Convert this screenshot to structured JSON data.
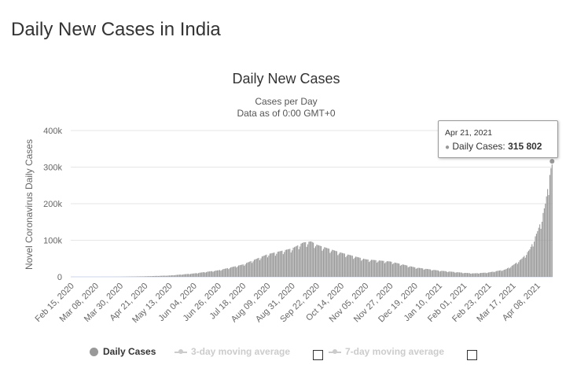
{
  "page": {
    "heading": "Daily New Cases in India"
  },
  "chart_data": {
    "type": "bar",
    "title": "Daily New Cases",
    "subtitle_lines": [
      "Cases per Day",
      "Data as of 0:00 GMT+0"
    ],
    "ylabel": "Novel Coronavirus Daily Cases",
    "xlabel": "",
    "ylim": [
      0,
      400000
    ],
    "y_tick_labels": [
      "0",
      "100k",
      "200k",
      "300k",
      "400k"
    ],
    "x_start_date": "2020-02-15",
    "x_end_date": "2021-04-21",
    "x_tick_labels": [
      "Feb 15, 2020",
      "Mar 08, 2020",
      "Mar 30, 2020",
      "Apr 21, 2020",
      "May 13, 2020",
      "Jun 04, 2020",
      "Jun 26, 2020",
      "Jul 18, 2020",
      "Aug 09, 2020",
      "Aug 31, 2020",
      "Sep 22, 2020",
      "Oct 14, 2020",
      "Nov 05, 2020",
      "Nov 27, 2020",
      "Dec 19, 2020",
      "Jan 10, 2021",
      "Feb 01, 2021",
      "Feb 23, 2021",
      "Mar 17, 2021",
      "Apr 08, 2021"
    ],
    "grid": true,
    "bar_color": "#999999",
    "series": [
      {
        "name": "Daily Cases",
        "points": [
          [
            "2020-02-15",
            0
          ],
          [
            "2020-03-08",
            5
          ],
          [
            "2020-03-30",
            200
          ],
          [
            "2020-04-21",
            1500
          ],
          [
            "2020-05-13",
            3600
          ],
          [
            "2020-06-04",
            9300
          ],
          [
            "2020-06-26",
            18000
          ],
          [
            "2020-07-18",
            34000
          ],
          [
            "2020-08-09",
            62000
          ],
          [
            "2020-08-31",
            78000
          ],
          [
            "2020-09-10",
            94000
          ],
          [
            "2020-09-17",
            97000
          ],
          [
            "2020-09-22",
            88000
          ],
          [
            "2020-10-14",
            66000
          ],
          [
            "2020-11-05",
            48000
          ],
          [
            "2020-11-27",
            42000
          ],
          [
            "2020-12-19",
            26000
          ],
          [
            "2021-01-10",
            17000
          ],
          [
            "2021-02-01",
            11000
          ],
          [
            "2021-02-10",
            9500
          ],
          [
            "2021-02-23",
            12000
          ],
          [
            "2021-03-10",
            20000
          ],
          [
            "2021-03-17",
            32000
          ],
          [
            "2021-03-25",
            50000
          ],
          [
            "2021-04-01",
            75000
          ],
          [
            "2021-04-08",
            125000
          ],
          [
            "2021-04-12",
            162000
          ],
          [
            "2021-04-15",
            200000
          ],
          [
            "2021-04-18",
            260000
          ],
          [
            "2021-04-21",
            315802
          ]
        ]
      }
    ],
    "tooltip": {
      "date": "Apr 21, 2021",
      "series_label": "Daily Cases",
      "value_text": "315 802"
    },
    "legend": {
      "items": [
        {
          "label": "Daily Cases",
          "active": true
        },
        {
          "label": "3-day moving average",
          "active": false
        },
        {
          "label": "7-day moving average",
          "active": false
        }
      ]
    }
  }
}
